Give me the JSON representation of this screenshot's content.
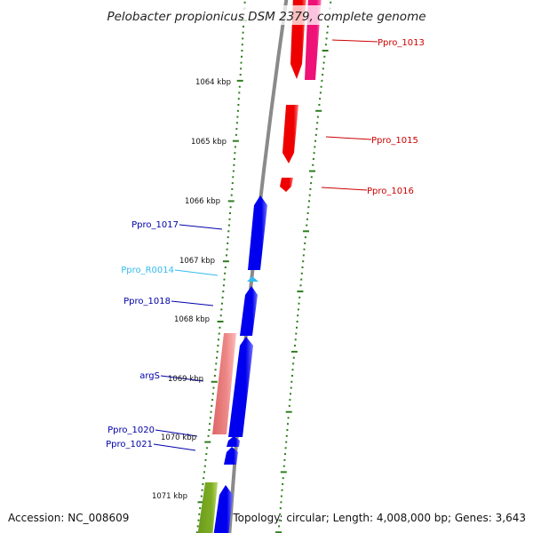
{
  "title": "Pelobacter propionicus DSM 2379, complete genome",
  "footer": {
    "accession": "Accession: NC_008609",
    "topology": "Topology: circular; Length: 4,008,000 bp; Genes: 3,643"
  },
  "colors": {
    "tick": "#2e7d1e",
    "forward_gene": "#0000ee",
    "reverse_gene": "#ee0000",
    "reverse_gene_alt": "#ee1177",
    "trna": "#33bbee",
    "argS": "#ee7777",
    "olive_gene": "#77a020",
    "backbone": "#8a8a8a"
  },
  "ruler_labels": [
    "1064 kbp",
    "1065 kbp",
    "1066 kbp",
    "1067 kbp",
    "1068 kbp",
    "1069 kbp",
    "1070 kbp",
    "1071 kbp"
  ],
  "gene_labels": [
    {
      "text": "Ppro_1013",
      "color": "#cc0000"
    },
    {
      "text": "Ppro_1015",
      "color": "#cc0000"
    },
    {
      "text": "Ppro_1016",
      "color": "#cc0000"
    },
    {
      "text": "Ppro_1017",
      "color": "#0000aa"
    },
    {
      "text": "Ppro_R0014",
      "color": "#33bbee"
    },
    {
      "text": "Ppro_1018",
      "color": "#0000aa"
    },
    {
      "text": "argS",
      "color": "#0000aa"
    },
    {
      "text": "Ppro_1020",
      "color": "#0000aa"
    },
    {
      "text": "Ppro_1021",
      "color": "#0000aa"
    }
  ]
}
